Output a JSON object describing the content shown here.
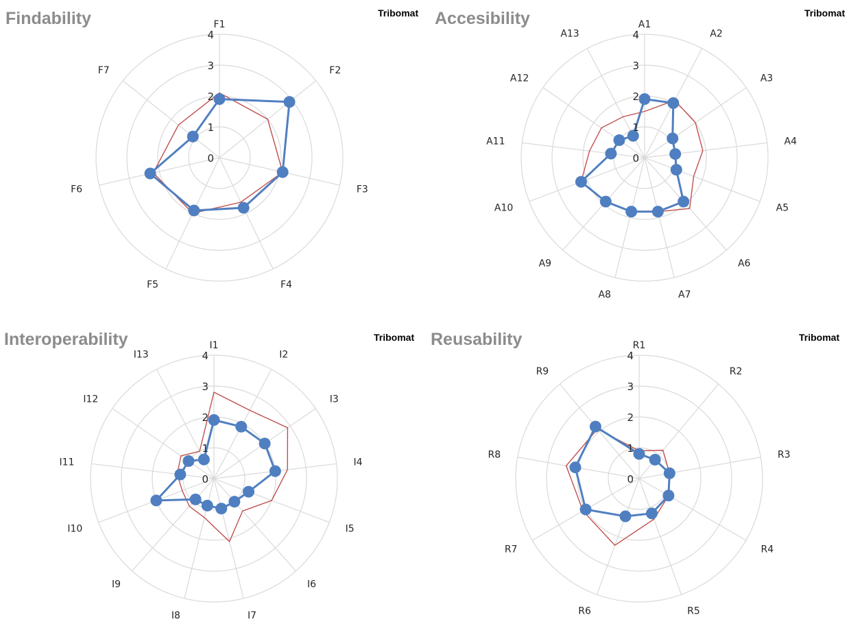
{
  "colors": {
    "primary": "#4f7fc0",
    "reference": "#c0504d",
    "grid": "#d9d9d9",
    "title": "#8c8c8c"
  },
  "chart_data": [
    {
      "type": "radar",
      "title": "Findability",
      "legend_text": "Tribomat",
      "rlim": [
        0,
        4
      ],
      "ticks": [
        "0",
        "1",
        "2",
        "3",
        "4"
      ],
      "grid": true,
      "categories": [
        "F1",
        "F2",
        "F3",
        "F4",
        "F5",
        "F6",
        "F7"
      ],
      "series": [
        {
          "values": [
            1.9,
            2.9,
            2.1,
            1.8,
            1.9,
            2.3,
            1.1
          ]
        },
        {
          "values": [
            2.1,
            2.0,
            2.1,
            1.6,
            2.0,
            2.2,
            1.7
          ]
        }
      ]
    },
    {
      "type": "radar",
      "title": "Accesibility",
      "legend_text": "Tribomat",
      "rlim": [
        0,
        4
      ],
      "ticks": [
        "0",
        "1",
        "2",
        "3",
        "4"
      ],
      "grid": true,
      "categories": [
        "A1",
        "A2",
        "A3",
        "A4",
        "A5",
        "A6",
        "A7",
        "A8",
        "A9",
        "A10",
        "A11",
        "A12",
        "A13"
      ],
      "series": [
        {
          "values": [
            1.9,
            2.0,
            1.1,
            1.0,
            1.1,
            1.9,
            1.8,
            1.8,
            1.9,
            2.2,
            1.1,
            1.0,
            0.8
          ]
        },
        {
          "values": [
            1.5,
            2.1,
            2.0,
            1.9,
            1.7,
            2.2,
            1.8,
            1.8,
            1.9,
            2.2,
            1.8,
            1.7,
            1.5
          ]
        }
      ]
    },
    {
      "type": "radar",
      "title": "Interoperability",
      "legend_text": "Tribomat",
      "rlim": [
        0,
        4
      ],
      "ticks": [
        "0",
        "1",
        "2",
        "3",
        "4"
      ],
      "grid": true,
      "categories": [
        "I1",
        "I2",
        "I3",
        "I4",
        "I5",
        "I6",
        "I7",
        "I8",
        "I9",
        "I10",
        "I11",
        "I12",
        "I13"
      ],
      "series": [
        {
          "values": [
            1.9,
            1.9,
            2.0,
            2.0,
            1.2,
            1.0,
            1.0,
            0.9,
            0.9,
            2.0,
            1.1,
            1.0,
            0.7
          ]
        },
        {
          "values": [
            2.8,
            2.5,
            2.9,
            2.4,
            2.0,
            1.4,
            2.1,
            1.3,
            1.2,
            1.1,
            1.2,
            1.3,
            1.0
          ]
        }
      ]
    },
    {
      "type": "radar",
      "title": "Reusability",
      "legend_text": "Tribomat",
      "rlim": [
        0,
        4
      ],
      "ticks": [
        "0",
        "1",
        "2",
        "3",
        "4"
      ],
      "grid": true,
      "categories": [
        "R1",
        "R2",
        "R3",
        "R4",
        "R5",
        "R6",
        "R7",
        "R8",
        "R9"
      ],
      "series": [
        {
          "values": [
            0.8,
            0.8,
            1.0,
            1.1,
            1.2,
            1.3,
            2.0,
            2.1,
            2.2
          ]
        },
        {
          "values": [
            0.9,
            1.2,
            1.0,
            1.1,
            1.4,
            2.3,
            2.1,
            2.4,
            2.1
          ]
        }
      ]
    }
  ]
}
